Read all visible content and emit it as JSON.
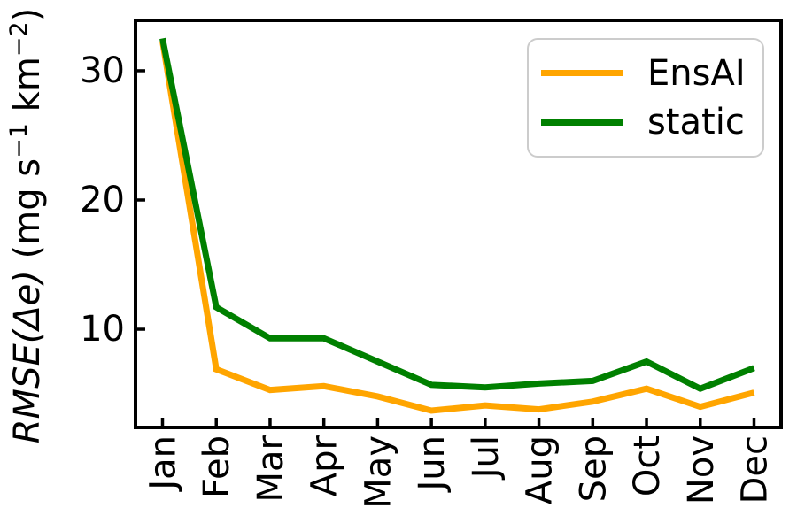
{
  "chart_data": {
    "type": "line",
    "title": "",
    "categories": [
      "Jan",
      "Feb",
      "Mar",
      "Apr",
      "May",
      "Jun",
      "Jul",
      "Aug",
      "Sep",
      "Oct",
      "Nov",
      "Dec"
    ],
    "series": [
      {
        "name": "EnsAI",
        "color": "#ffa500",
        "values": [
          32.3,
          6.9,
          5.3,
          5.6,
          4.8,
          3.7,
          4.1,
          3.8,
          4.4,
          5.4,
          4.0,
          5.1
        ]
      },
      {
        "name": "static",
        "color": "#008000",
        "values": [
          32.5,
          11.7,
          9.3,
          9.3,
          7.5,
          5.7,
          5.5,
          5.8,
          6.0,
          7.5,
          5.4,
          7.0
        ]
      }
    ],
    "xlabel": "",
    "ylabel": "RMSE(Δe) (mg s⁻¹ km⁻²)",
    "ylabel_parts": [
      {
        "text": "RMSE(Δe)",
        "italic": true
      },
      {
        "text": " (mg s",
        "italic": false
      },
      {
        "text": "−1",
        "sup": true
      },
      {
        "text": " km",
        "italic": false
      },
      {
        "text": "−2",
        "sup": true
      },
      {
        "text": ")",
        "italic": false
      }
    ],
    "yticks": [
      "10",
      "20",
      "30"
    ],
    "ylim": [
      2.4,
      33.9
    ],
    "x_tick_rotation": 90,
    "grid": false,
    "legend_position": "upper right",
    "axis_color": "#000000",
    "background_color": "#ffffff",
    "legend_border_color": "#cccccc"
  }
}
